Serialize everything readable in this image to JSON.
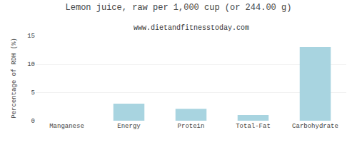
{
  "chart_data": {
    "type": "bar",
    "title": "Lemon juice, raw per 1,000 cup (or 244.00 g)",
    "subtitle": "www.dietandfitnesstoday.com",
    "categories": [
      "Manganese",
      "Energy",
      "Protein",
      "Total-Fat",
      "Carbohydrate"
    ],
    "values": [
      0.0,
      3.0,
      2.1,
      1.0,
      13.0
    ],
    "color": "#a8d4e0",
    "ylabel": "Percentage of RDH (%)",
    "ylim": [
      0,
      15
    ],
    "yticks": [
      0,
      5,
      10,
      15
    ],
    "grid": true
  }
}
